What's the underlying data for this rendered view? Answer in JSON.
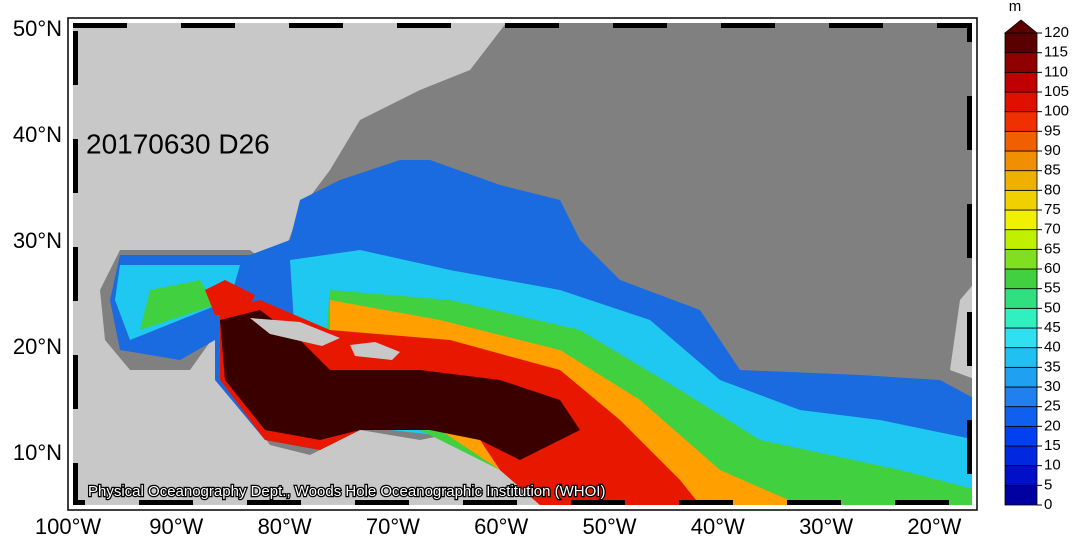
{
  "map": {
    "title": "20170630 D26",
    "credit": "Physical Oceanography Dept., Woods Hole Oceanographic Institution (WHOI)",
    "lat_labels": [
      "50°N",
      "40°N",
      "30°N",
      "20°N",
      "10°N"
    ],
    "lon_labels": [
      "100°W",
      "90°W",
      "80°W",
      "70°W",
      "60°W",
      "50°W",
      "40°W",
      "30°W",
      "20°W"
    ],
    "colorbar": {
      "unit": "m",
      "ticks": [
        0,
        5,
        10,
        15,
        20,
        25,
        30,
        35,
        40,
        45,
        50,
        55,
        60,
        65,
        70,
        75,
        80,
        85,
        90,
        95,
        100,
        105,
        110,
        115,
        120
      ],
      "colors": [
        "#0000a0",
        "#0010c8",
        "#0028e0",
        "#0040f0",
        "#1060f0",
        "#2080f0",
        "#20a0f0",
        "#20c0f0",
        "#30e0f0",
        "#30f0c0",
        "#30e080",
        "#40d040",
        "#80e020",
        "#c0f000",
        "#f0f000",
        "#f0d000",
        "#f0b000",
        "#f09000",
        "#f06000",
        "#f03000",
        "#e01000",
        "#c00000",
        "#900000",
        "#5a0000"
      ]
    }
  }
}
